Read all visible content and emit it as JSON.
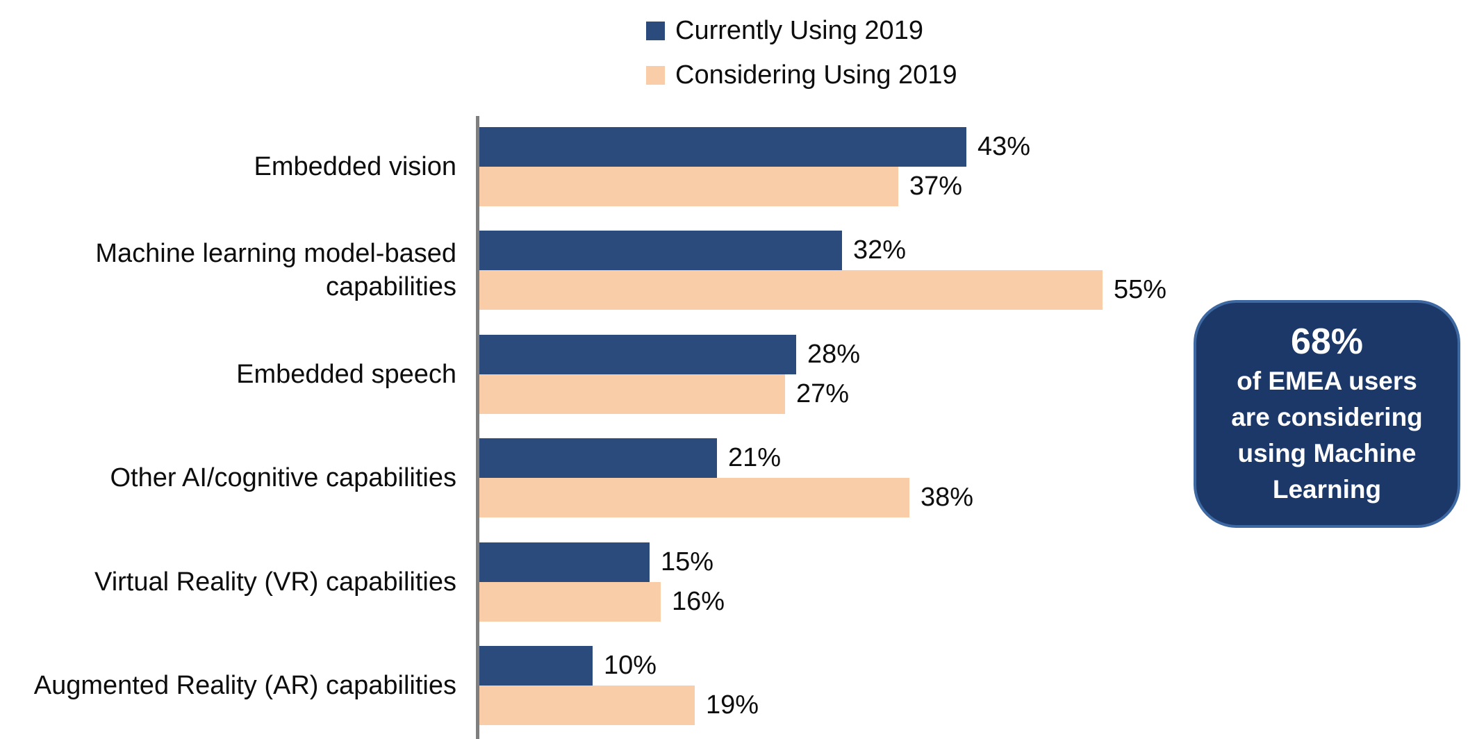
{
  "chart_data": {
    "type": "bar",
    "orientation": "horizontal",
    "title": "",
    "xlabel": "",
    "ylabel": "",
    "xlim": [
      0,
      60
    ],
    "grid": false,
    "legend_position": "top-center",
    "axis_line_color": "#7F7F7F",
    "value_suffix": "%",
    "categories": [
      "Embedded vision",
      "Machine learning model-based capabilities",
      "Embedded speech",
      "Other AI/cognitive capabilities",
      "Virtual Reality (VR) capabilities",
      "Augmented Reality (AR) capabilities"
    ],
    "series": [
      {
        "name": "Currently Using 2019",
        "color": "#2B4B7D",
        "values": [
          43,
          32,
          28,
          21,
          15,
          10
        ]
      },
      {
        "name": "Considering Using 2019",
        "color": "#F9CDA8",
        "values": [
          37,
          55,
          27,
          38,
          16,
          19
        ]
      }
    ]
  },
  "callout": {
    "headline": "68%",
    "body_lines": [
      "of EMEA users",
      "are considering",
      "using Machine",
      "Learning"
    ],
    "bg_color": "#1B3869",
    "border_color": "#3E68A2",
    "text_color": "#FFFFFF"
  }
}
